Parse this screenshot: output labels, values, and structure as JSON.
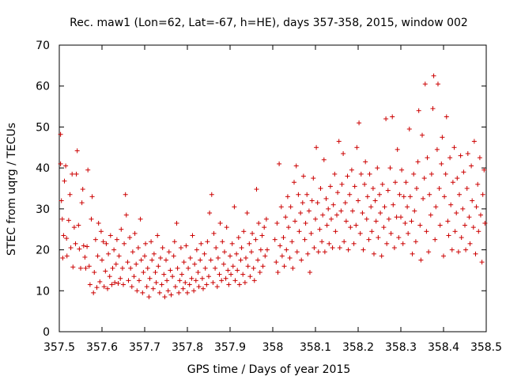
{
  "chart_data": {
    "type": "scatter",
    "title": "Rec. maw1 (Lon=62, Lat=-67, h=HE), days 357-358, 2015, window 002",
    "xlabel": "GPS time / Days of year 2015",
    "ylabel": "STEC from uqrg / TECUs",
    "xlim": [
      357.5,
      358.5
    ],
    "ylim": [
      0,
      70
    ],
    "xticks": [
      "357.5",
      "357.6",
      "357.7",
      "357.8",
      "357.9",
      "358",
      "358.1",
      "358.2",
      "358.3",
      "358.4",
      "358.5"
    ],
    "yticks": [
      "0",
      "10",
      "20",
      "30",
      "40",
      "50",
      "60",
      "70"
    ],
    "grid": false,
    "marker": "+",
    "color": "#cc0000",
    "points": [
      [
        357.503,
        48.2
      ],
      [
        357.503,
        41.0
      ],
      [
        357.505,
        32.0
      ],
      [
        357.507,
        27.5
      ],
      [
        357.508,
        18.0
      ],
      [
        357.51,
        23.5
      ],
      [
        357.512,
        36.8
      ],
      [
        357.515,
        40.5
      ],
      [
        357.517,
        22.8
      ],
      [
        357.518,
        18.5
      ],
      [
        357.522,
        27.2
      ],
      [
        357.525,
        33.5
      ],
      [
        357.527,
        20.5
      ],
      [
        357.53,
        38.5
      ],
      [
        357.532,
        15.8
      ],
      [
        357.535,
        25.5
      ],
      [
        357.538,
        21.5
      ],
      [
        357.54,
        38.5
      ],
      [
        357.542,
        44.2
      ],
      [
        357.545,
        26.0
      ],
      [
        357.547,
        20.2
      ],
      [
        357.55,
        15.5
      ],
      [
        357.553,
        31.5
      ],
      [
        357.555,
        34.8
      ],
      [
        357.557,
        21.0
      ],
      [
        357.56,
        18.2
      ],
      [
        357.562,
        15.5
      ],
      [
        357.565,
        20.8
      ],
      [
        357.567,
        39.5
      ],
      [
        357.57,
        16.0
      ],
      [
        357.572,
        11.5
      ],
      [
        357.575,
        27.5
      ],
      [
        357.577,
        33.0
      ],
      [
        357.58,
        9.5
      ],
      [
        357.582,
        14.5
      ],
      [
        357.585,
        22.5
      ],
      [
        357.588,
        10.8
      ],
      [
        357.59,
        18.5
      ],
      [
        357.592,
        26.5
      ],
      [
        357.595,
        12.2
      ],
      [
        357.598,
        24.5
      ],
      [
        357.6,
        17.5
      ],
      [
        357.603,
        22.0
      ],
      [
        357.605,
        11.0
      ],
      [
        357.608,
        14.8
      ],
      [
        357.61,
        21.5
      ],
      [
        357.613,
        10.5
      ],
      [
        357.615,
        19.0
      ],
      [
        357.618,
        13.5
      ],
      [
        357.62,
        23.5
      ],
      [
        357.623,
        11.5
      ],
      [
        357.625,
        15.5
      ],
      [
        357.628,
        20.0
      ],
      [
        357.63,
        12.0
      ],
      [
        357.633,
        16.5
      ],
      [
        357.635,
        22.5
      ],
      [
        357.638,
        11.8
      ],
      [
        357.64,
        18.5
      ],
      [
        357.643,
        13.0
      ],
      [
        357.645,
        25.0
      ],
      [
        357.648,
        15.5
      ],
      [
        357.65,
        11.5
      ],
      [
        357.652,
        21.5
      ],
      [
        357.655,
        33.5
      ],
      [
        357.657,
        28.5
      ],
      [
        357.66,
        17.0
      ],
      [
        357.662,
        12.5
      ],
      [
        357.665,
        23.0
      ],
      [
        357.667,
        15.5
      ],
      [
        357.67,
        11.0
      ],
      [
        357.672,
        19.5
      ],
      [
        357.675,
        13.5
      ],
      [
        357.677,
        24.0
      ],
      [
        357.68,
        16.5
      ],
      [
        357.682,
        10.0
      ],
      [
        357.685,
        20.5
      ],
      [
        357.687,
        12.5
      ],
      [
        357.69,
        27.5
      ],
      [
        357.692,
        17.5
      ],
      [
        357.695,
        9.5
      ],
      [
        357.697,
        14.5
      ],
      [
        357.7,
        18.5
      ],
      [
        357.702,
        21.5
      ],
      [
        357.705,
        11.0
      ],
      [
        357.707,
        15.5
      ],
      [
        357.71,
        8.5
      ],
      [
        357.712,
        13.0
      ],
      [
        357.715,
        22.0
      ],
      [
        357.717,
        17.5
      ],
      [
        357.72,
        10.5
      ],
      [
        357.722,
        19.0
      ],
      [
        357.725,
        14.5
      ],
      [
        357.727,
        12.0
      ],
      [
        357.73,
        23.5
      ],
      [
        357.732,
        16.0
      ],
      [
        357.735,
        9.5
      ],
      [
        357.737,
        18.0
      ],
      [
        357.74,
        11.5
      ],
      [
        357.742,
        20.5
      ],
      [
        357.745,
        14.0
      ],
      [
        357.747,
        8.5
      ],
      [
        357.75,
        17.5
      ],
      [
        357.752,
        12.5
      ],
      [
        357.755,
        10.0
      ],
      [
        357.757,
        19.5
      ],
      [
        357.76,
        15.0
      ],
      [
        357.762,
        9.0
      ],
      [
        357.765,
        13.5
      ],
      [
        357.768,
        18.5
      ],
      [
        357.77,
        22.0
      ],
      [
        357.772,
        11.0
      ],
      [
        357.775,
        26.5
      ],
      [
        357.777,
        15.5
      ],
      [
        357.78,
        9.5
      ],
      [
        357.782,
        12.5
      ],
      [
        357.785,
        20.5
      ],
      [
        357.787,
        14.0
      ],
      [
        357.79,
        10.5
      ],
      [
        357.792,
        17.0
      ],
      [
        357.795,
        12.0
      ],
      [
        357.797,
        21.0
      ],
      [
        357.8,
        9.5
      ],
      [
        357.802,
        15.5
      ],
      [
        357.805,
        11.5
      ],
      [
        357.807,
        18.0
      ],
      [
        357.81,
        13.0
      ],
      [
        357.812,
        23.5
      ],
      [
        357.815,
        10.0
      ],
      [
        357.817,
        16.5
      ],
      [
        357.82,
        12.5
      ],
      [
        357.822,
        20.0
      ],
      [
        357.825,
        14.5
      ],
      [
        357.827,
        11.0
      ],
      [
        357.83,
        17.5
      ],
      [
        357.832,
        21.5
      ],
      [
        357.835,
        13.0
      ],
      [
        357.837,
        10.5
      ],
      [
        357.84,
        19.0
      ],
      [
        357.842,
        15.5
      ],
      [
        357.845,
        11.5
      ],
      [
        357.847,
        22.0
      ],
      [
        357.85,
        13.5
      ],
      [
        357.852,
        29.0
      ],
      [
        357.855,
        17.5
      ],
      [
        357.857,
        33.5
      ],
      [
        357.86,
        12.0
      ],
      [
        357.862,
        24.0
      ],
      [
        357.865,
        15.5
      ],
      [
        357.867,
        20.5
      ],
      [
        357.87,
        11.0
      ],
      [
        357.872,
        18.0
      ],
      [
        357.875,
        14.0
      ],
      [
        357.877,
        26.5
      ],
      [
        357.88,
        12.5
      ],
      [
        357.882,
        22.0
      ],
      [
        357.885,
        16.5
      ],
      [
        357.887,
        19.5
      ],
      [
        357.89,
        13.0
      ],
      [
        357.892,
        25.5
      ],
      [
        357.895,
        15.0
      ],
      [
        357.897,
        11.5
      ],
      [
        357.9,
        18.5
      ],
      [
        357.902,
        14.0
      ],
      [
        357.905,
        21.5
      ],
      [
        357.907,
        16.0
      ],
      [
        357.91,
        30.5
      ],
      [
        357.912,
        12.5
      ],
      [
        357.915,
        19.0
      ],
      [
        357.917,
        15.0
      ],
      [
        357.92,
        23.0
      ],
      [
        357.922,
        11.5
      ],
      [
        357.925,
        17.5
      ],
      [
        357.927,
        20.5
      ],
      [
        357.93,
        14.0
      ],
      [
        357.932,
        24.5
      ],
      [
        357.935,
        12.0
      ],
      [
        357.937,
        18.0
      ],
      [
        357.94,
        29.0
      ],
      [
        357.942,
        16.0
      ],
      [
        357.945,
        21.5
      ],
      [
        357.947,
        13.5
      ],
      [
        357.95,
        19.5
      ],
      [
        357.952,
        24.0
      ],
      [
        357.955,
        15.5
      ],
      [
        357.957,
        12.5
      ],
      [
        357.96,
        22.5
      ],
      [
        357.962,
        34.8
      ],
      [
        357.965,
        17.5
      ],
      [
        357.967,
        26.5
      ],
      [
        357.97,
        14.5
      ],
      [
        357.972,
        20.0
      ],
      [
        357.975,
        23.5
      ],
      [
        357.977,
        16.0
      ],
      [
        357.98,
        25.5
      ],
      [
        357.982,
        18.5
      ],
      [
        357.985,
        27.5
      ],
      [
        357.987,
        20.0
      ],
      [
        358.005,
        22.5
      ],
      [
        358.008,
        17.0
      ],
      [
        358.01,
        26.5
      ],
      [
        358.012,
        14.5
      ],
      [
        358.015,
        41.0
      ],
      [
        358.017,
        21.0
      ],
      [
        358.02,
        30.5
      ],
      [
        358.022,
        18.5
      ],
      [
        358.025,
        23.0
      ],
      [
        358.027,
        16.0
      ],
      [
        358.03,
        28.0
      ],
      [
        358.032,
        20.0
      ],
      [
        358.035,
        33.0
      ],
      [
        358.037,
        25.5
      ],
      [
        358.04,
        18.0
      ],
      [
        358.042,
        30.5
      ],
      [
        358.045,
        22.0
      ],
      [
        358.047,
        15.5
      ],
      [
        358.05,
        36.5
      ],
      [
        358.052,
        27.0
      ],
      [
        358.055,
        40.5
      ],
      [
        358.057,
        19.5
      ],
      [
        358.06,
        33.5
      ],
      [
        358.062,
        24.5
      ],
      [
        358.065,
        29.0
      ],
      [
        358.067,
        17.5
      ],
      [
        358.07,
        31.5
      ],
      [
        358.072,
        38.0
      ],
      [
        358.075,
        22.5
      ],
      [
        358.077,
        26.5
      ],
      [
        358.08,
        33.5
      ],
      [
        358.082,
        19.0
      ],
      [
        358.085,
        29.5
      ],
      [
        358.087,
        14.5
      ],
      [
        358.09,
        24.0
      ],
      [
        358.092,
        32.0
      ],
      [
        358.095,
        37.5
      ],
      [
        358.097,
        20.5
      ],
      [
        358.1,
        27.5
      ],
      [
        358.102,
        45.0
      ],
      [
        358.105,
        31.5
      ],
      [
        358.107,
        19.5
      ],
      [
        358.11,
        25.0
      ],
      [
        358.112,
        35.0
      ],
      [
        358.115,
        22.0
      ],
      [
        358.117,
        28.5
      ],
      [
        358.12,
        42.0
      ],
      [
        358.122,
        19.5
      ],
      [
        358.125,
        32.5
      ],
      [
        358.127,
        26.0
      ],
      [
        358.13,
        30.0
      ],
      [
        358.132,
        21.5
      ],
      [
        358.135,
        35.5
      ],
      [
        358.137,
        27.5
      ],
      [
        358.14,
        20.5
      ],
      [
        358.142,
        31.0
      ],
      [
        358.145,
        38.5
      ],
      [
        358.147,
        24.5
      ],
      [
        358.15,
        28.5
      ],
      [
        358.152,
        34.0
      ],
      [
        358.155,
        46.5
      ],
      [
        358.157,
        20.5
      ],
      [
        358.16,
        29.5
      ],
      [
        358.162,
        36.0
      ],
      [
        358.165,
        43.5
      ],
      [
        358.167,
        22.0
      ],
      [
        358.17,
        31.5
      ],
      [
        358.172,
        27.0
      ],
      [
        358.175,
        38.0
      ],
      [
        358.177,
        20.0
      ],
      [
        358.18,
        33.5
      ],
      [
        358.182,
        25.5
      ],
      [
        358.185,
        39.5
      ],
      [
        358.187,
        29.5
      ],
      [
        358.19,
        21.5
      ],
      [
        358.192,
        35.5
      ],
      [
        358.195,
        26.0
      ],
      [
        358.197,
        45.0
      ],
      [
        358.2,
        32.0
      ],
      [
        358.202,
        51.0
      ],
      [
        358.205,
        24.0
      ],
      [
        358.207,
        38.5
      ],
      [
        358.21,
        29.0
      ],
      [
        358.212,
        20.0
      ],
      [
        358.215,
        36.0
      ],
      [
        358.217,
        41.5
      ],
      [
        358.22,
        27.5
      ],
      [
        358.222,
        33.0
      ],
      [
        358.225,
        22.5
      ],
      [
        358.227,
        38.5
      ],
      [
        358.23,
        30.5
      ],
      [
        358.232,
        24.5
      ],
      [
        358.235,
        35.0
      ],
      [
        358.237,
        19.0
      ],
      [
        358.24,
        32.0
      ],
      [
        358.242,
        27.0
      ],
      [
        358.245,
        40.0
      ],
      [
        358.247,
        23.0
      ],
      [
        358.25,
        33.5
      ],
      [
        358.252,
        29.0
      ],
      [
        358.255,
        18.5
      ],
      [
        358.257,
        36.0
      ],
      [
        358.26,
        25.5
      ],
      [
        358.262,
        30.5
      ],
      [
        358.265,
        52.0
      ],
      [
        358.267,
        21.5
      ],
      [
        358.27,
        34.5
      ],
      [
        358.272,
        27.5
      ],
      [
        358.275,
        40.0
      ],
      [
        358.277,
        24.0
      ],
      [
        358.28,
        52.5
      ],
      [
        358.282,
        31.0
      ],
      [
        358.285,
        20.5
      ],
      [
        358.287,
        36.5
      ],
      [
        358.29,
        28.0
      ],
      [
        358.292,
        44.5
      ],
      [
        358.295,
        23.0
      ],
      [
        358.297,
        33.5
      ],
      [
        358.3,
        28.0
      ],
      [
        358.302,
        39.5
      ],
      [
        358.305,
        21.5
      ],
      [
        358.307,
        33.0
      ],
      [
        358.31,
        26.5
      ],
      [
        358.312,
        36.5
      ],
      [
        358.315,
        30.5
      ],
      [
        358.317,
        24.0
      ],
      [
        358.32,
        49.5
      ],
      [
        358.322,
        33.0
      ],
      [
        358.325,
        27.0
      ],
      [
        358.327,
        19.0
      ],
      [
        358.33,
        38.5
      ],
      [
        358.332,
        29.5
      ],
      [
        358.335,
        22.0
      ],
      [
        358.337,
        35.0
      ],
      [
        358.34,
        41.5
      ],
      [
        358.342,
        54.0
      ],
      [
        358.345,
        26.0
      ],
      [
        358.347,
        17.5
      ],
      [
        358.35,
        48.0
      ],
      [
        358.352,
        32.5
      ],
      [
        358.355,
        37.5
      ],
      [
        358.357,
        60.5
      ],
      [
        358.36,
        24.5
      ],
      [
        358.362,
        42.5
      ],
      [
        358.365,
        19.5
      ],
      [
        358.367,
        33.5
      ],
      [
        358.37,
        28.5
      ],
      [
        358.372,
        38.5
      ],
      [
        358.375,
        54.5
      ],
      [
        358.377,
        62.5
      ],
      [
        358.38,
        22.5
      ],
      [
        358.382,
        30.5
      ],
      [
        358.385,
        44.5
      ],
      [
        358.387,
        60.5
      ],
      [
        358.39,
        35.0
      ],
      [
        358.392,
        26.0
      ],
      [
        358.395,
        41.0
      ],
      [
        358.397,
        47.5
      ],
      [
        358.4,
        18.5
      ],
      [
        358.402,
        33.0
      ],
      [
        358.405,
        38.5
      ],
      [
        358.407,
        52.5
      ],
      [
        358.41,
        27.0
      ],
      [
        358.412,
        23.5
      ],
      [
        358.415,
        42.5
      ],
      [
        358.417,
        31.0
      ],
      [
        358.42,
        20.0
      ],
      [
        358.422,
        36.5
      ],
      [
        358.425,
        45.0
      ],
      [
        358.427,
        24.5
      ],
      [
        358.43,
        29.0
      ],
      [
        358.432,
        37.5
      ],
      [
        358.435,
        19.5
      ],
      [
        358.437,
        33.5
      ],
      [
        358.44,
        43.0
      ],
      [
        358.442,
        23.0
      ],
      [
        358.445,
        30.0
      ],
      [
        358.447,
        39.0
      ],
      [
        358.45,
        26.0
      ],
      [
        358.452,
        20.0
      ],
      [
        358.455,
        35.0
      ],
      [
        358.457,
        43.5
      ],
      [
        358.46,
        28.0
      ],
      [
        358.462,
        21.5
      ],
      [
        358.465,
        40.5
      ],
      [
        358.467,
        32.0
      ],
      [
        358.47,
        25.5
      ],
      [
        358.472,
        46.5
      ],
      [
        358.475,
        19.0
      ],
      [
        358.477,
        30.5
      ],
      [
        358.48,
        36.0
      ],
      [
        358.482,
        24.5
      ],
      [
        358.485,
        42.5
      ],
      [
        358.487,
        28.5
      ],
      [
        358.49,
        17.0
      ],
      [
        358.492,
        33.5
      ],
      [
        358.495,
        39.5
      ],
      [
        358.497,
        26.5
      ]
    ]
  }
}
